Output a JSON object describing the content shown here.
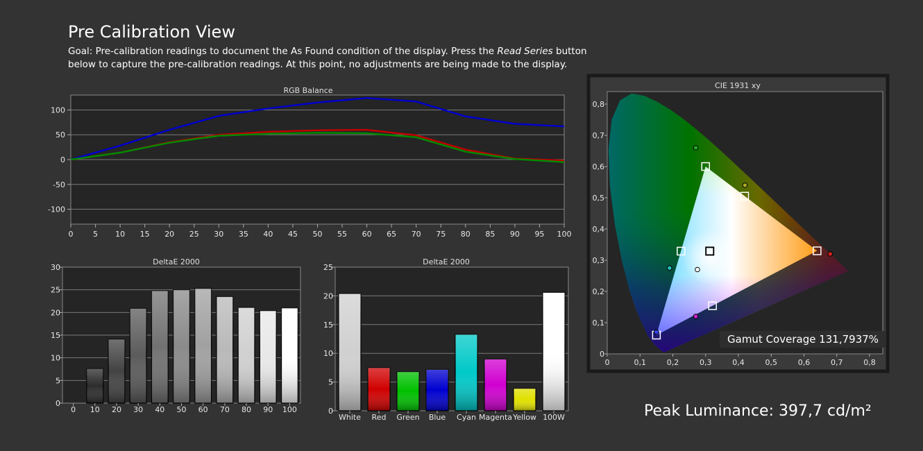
{
  "page": {
    "title": "Pre Calibration View",
    "goal_prefix": "Goal: Pre-calibration readings to document the As Found condition of the display. Press the ",
    "goal_emphasis": "Read Series",
    "goal_suffix": " button below to capture the pre-calibration readings. At this point, no adjustments are being made to the display.",
    "peak_luminance": "Peak Luminance: 397,7 cd/m²"
  },
  "colors": {
    "background": "#333333",
    "plot_bg": "#252525",
    "red": "#c00000",
    "green": "#008a00",
    "blue": "#0000cc"
  },
  "chart_data": [
    {
      "id": "rgb_balance",
      "type": "line",
      "title": "RGB Balance",
      "x": [
        0,
        10,
        20,
        30,
        40,
        50,
        60,
        70,
        80,
        90,
        100
      ],
      "xticks": [
        0,
        5,
        10,
        15,
        20,
        25,
        30,
        35,
        40,
        45,
        50,
        55,
        60,
        65,
        70,
        75,
        80,
        85,
        90,
        95,
        100
      ],
      "xlim": [
        0,
        100
      ],
      "ylim": [
        -130,
        130
      ],
      "yticks": [
        100,
        50,
        0,
        -50,
        -100
      ],
      "grid": true,
      "series": [
        {
          "color": "#0000cc",
          "values": [
            0,
            28,
            60,
            88,
            103,
            115,
            124,
            117,
            87,
            72,
            67
          ]
        },
        {
          "color": "#c00000",
          "values": [
            0,
            14,
            35,
            50,
            56,
            59,
            60,
            49,
            20,
            2,
            -2
          ]
        },
        {
          "color": "#008a00",
          "values": [
            0,
            14,
            34,
            48,
            52,
            54,
            53,
            45,
            16,
            1,
            -5
          ]
        }
      ]
    },
    {
      "id": "deltae_grayscale",
      "type": "bar",
      "title": "DeltaE 2000",
      "categories": [
        "0",
        "10",
        "20",
        "30",
        "40",
        "50",
        "60",
        "70",
        "80",
        "90",
        "100"
      ],
      "values": [
        0,
        7.6,
        14.1,
        20.9,
        24.8,
        25.0,
        25.3,
        23.5,
        21.1,
        20.4,
        21.0
      ],
      "ylim": [
        0,
        30
      ],
      "yticks": [
        0,
        5,
        10,
        15,
        20,
        25,
        30
      ],
      "grid": true
    },
    {
      "id": "deltae_colors",
      "type": "bar",
      "title": "DeltaE 2000",
      "categories": [
        "White",
        "Red",
        "Green",
        "Blue",
        "Cyan",
        "Magenta",
        "Yellow",
        "100W"
      ],
      "values": [
        20.4,
        7.5,
        6.8,
        7.2,
        13.3,
        9.0,
        3.9,
        20.6
      ],
      "bar_colors": [
        "#d0d0d0",
        "#d00000",
        "#00c000",
        "#0000d0",
        "#00c8c8",
        "#d000d0",
        "#e0e000",
        "#ffffff"
      ],
      "ylim": [
        0,
        25
      ],
      "yticks": [
        0,
        5,
        10,
        15,
        20,
        25
      ],
      "grid": true
    },
    {
      "id": "cie_1931",
      "type": "scatter",
      "title": "CIE 1931 xy",
      "xlim": [
        0,
        0.8
      ],
      "ylim": [
        0,
        0.85
      ],
      "xticks": [
        "0",
        "0,1",
        "0,2",
        "0,3",
        "0,4",
        "0,5",
        "0,6",
        "0,7",
        "0,8"
      ],
      "yticks": [
        "0",
        "0,1",
        "0,2",
        "0,3",
        "0,4",
        "0,5",
        "0,6",
        "0,7",
        "0,8"
      ],
      "gamut_coverage": "Gamut Coverage 131,7937%",
      "targets": [
        {
          "x": 0.64,
          "y": 0.33
        },
        {
          "x": 0.3,
          "y": 0.6
        },
        {
          "x": 0.15,
          "y": 0.06
        },
        {
          "x": 0.225,
          "y": 0.329
        },
        {
          "x": 0.321,
          "y": 0.154
        },
        {
          "x": 0.419,
          "y": 0.505
        },
        {
          "x": 0.3127,
          "y": 0.329
        }
      ],
      "measured": [
        {
          "x": 0.68,
          "y": 0.32,
          "color": "#cc2222"
        },
        {
          "x": 0.27,
          "y": 0.66,
          "color": "#22aa22"
        },
        {
          "x": 0.15,
          "y": 0.07,
          "color": "#3344ee"
        },
        {
          "x": 0.19,
          "y": 0.275,
          "color": "#22bbbb"
        },
        {
          "x": 0.27,
          "y": 0.12,
          "color": "#cc22cc"
        },
        {
          "x": 0.42,
          "y": 0.54,
          "color": "#aaaa22"
        },
        {
          "x": 0.275,
          "y": 0.27,
          "color": "#ffffff"
        }
      ]
    }
  ]
}
